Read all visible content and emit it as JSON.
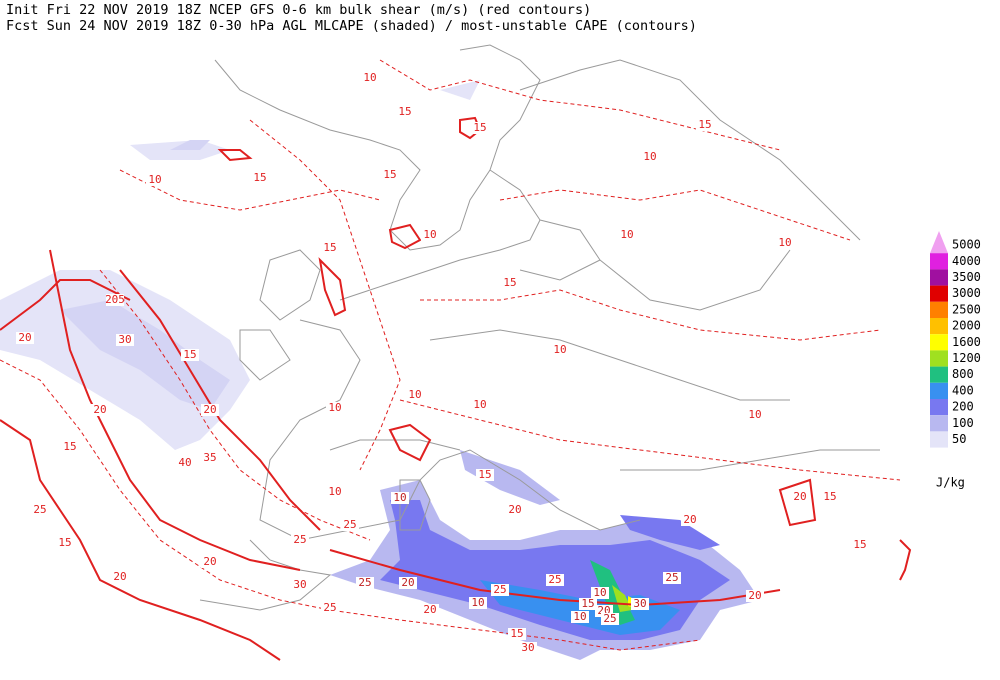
{
  "header": {
    "line1": "Init  Fri 22 NOV 2019 18Z   NCEP GFS 0-6 km bulk shear (m/s) (red contours)",
    "line2": "Fcst Sun 24 NOV 2019 18Z  0-30 hPa AGL MLCAPE (shaded) / most-unstable CAPE (contours)"
  },
  "legend": {
    "levels": [
      5000,
      4000,
      3500,
      3000,
      2500,
      2000,
      1600,
      1200,
      800,
      400,
      200,
      100,
      50
    ],
    "colors": [
      "#f0a0f0",
      "#e020e0",
      "#a010a0",
      "#e00000",
      "#ff8000",
      "#ffc000",
      "#ffff00",
      "#a0e020",
      "#20c080",
      "#3890f0",
      "#7878f0",
      "#b8b8f0",
      "#e4e4f8"
    ],
    "unit": "J/kg"
  },
  "map": {
    "shear_labels": [
      10,
      15,
      15,
      10,
      15,
      10,
      15,
      15,
      15,
      15,
      10,
      10,
      10,
      205,
      30,
      20,
      15,
      20,
      20,
      15,
      40,
      35,
      10,
      10,
      10,
      10,
      10,
      10,
      15,
      20,
      20,
      15,
      15,
      25,
      15,
      20,
      20,
      25,
      25,
      30,
      25,
      20,
      15,
      30,
      25,
      25,
      20,
      20
    ],
    "cape_labels": [
      10,
      10,
      10,
      10,
      15,
      20,
      25,
      30,
      25,
      25,
      20
    ]
  }
}
